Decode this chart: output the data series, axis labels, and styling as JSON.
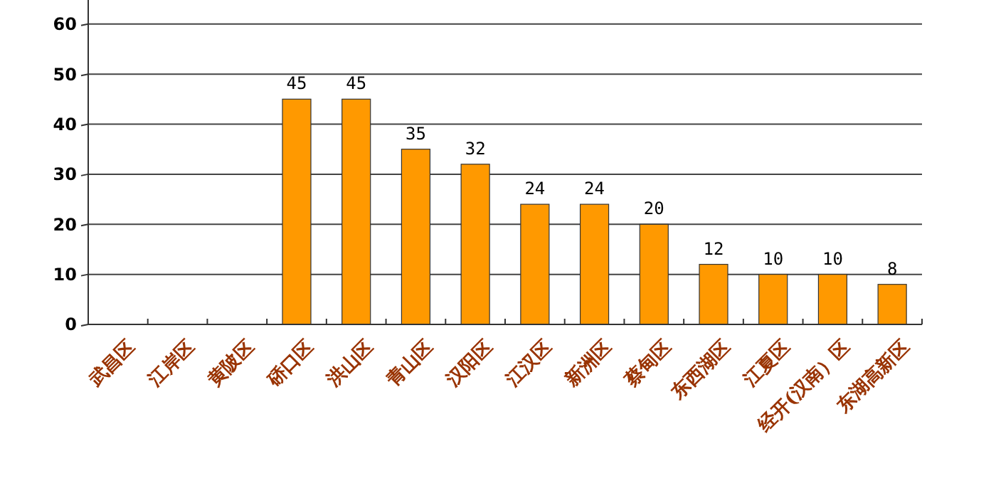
{
  "chart_data": {
    "type": "bar",
    "categories": [
      "武昌区",
      "江岸区",
      "黄陂区",
      "硚口区",
      "洪山区",
      "青山区",
      "汉阳区",
      "江汉区",
      "新洲区",
      "蔡甸区",
      "东西湖区",
      "江夏区",
      "经开(汉南）区",
      "东湖高新区"
    ],
    "values": [
      null,
      null,
      null,
      45,
      45,
      35,
      32,
      24,
      24,
      20,
      12,
      10,
      10,
      8
    ],
    "color": "#ff9900",
    "ylim": [
      0,
      64.8
    ],
    "yticks": [
      0,
      10,
      20,
      30,
      40,
      50,
      60
    ],
    "grid": "y",
    "data_labels": true
  }
}
